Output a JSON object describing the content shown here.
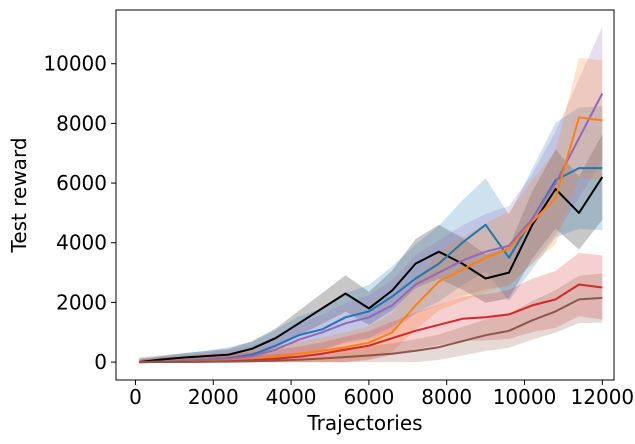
{
  "chart_data": {
    "type": "line",
    "title": "",
    "xlabel": "Trajectories",
    "ylabel": "Test reward",
    "xlim": [
      -500,
      12300
    ],
    "ylim": [
      -600,
      11800
    ],
    "xticks": [
      0,
      2000,
      4000,
      6000,
      8000,
      10000,
      12000
    ],
    "yticks": [
      0,
      2000,
      4000,
      6000,
      8000,
      10000
    ],
    "x": [
      100,
      600,
      1200,
      1800,
      2400,
      3000,
      3600,
      4200,
      4800,
      5400,
      6000,
      6600,
      7200,
      7800,
      8400,
      9000,
      9600,
      10200,
      10800,
      11400,
      12000
    ],
    "series": [
      {
        "name": "black",
        "color": "#000000",
        "band": 500,
        "values": [
          0,
          80,
          150,
          200,
          250,
          450,
          800,
          1300,
          1800,
          2300,
          1800,
          2400,
          3300,
          3700,
          3300,
          2800,
          3000,
          4600,
          5800,
          5000,
          6200
        ]
      },
      {
        "name": "blue",
        "color": "#1f77b4",
        "band": 1100,
        "values": [
          0,
          10,
          30,
          70,
          130,
          250,
          550,
          900,
          1100,
          1500,
          1700,
          2200,
          2800,
          3300,
          4000,
          4600,
          3500,
          4800,
          6100,
          6500,
          6500
        ]
      },
      {
        "name": "purple",
        "color": "#9467bd",
        "band": 900,
        "values": [
          0,
          10,
          25,
          60,
          110,
          200,
          420,
          750,
          1000,
          1300,
          1500,
          1900,
          2600,
          3000,
          3400,
          3700,
          3900,
          4800,
          6000,
          7500,
          9000
        ]
      },
      {
        "name": "orange",
        "color": "#ff7f0e",
        "band": 800,
        "values": [
          0,
          5,
          10,
          25,
          50,
          100,
          180,
          280,
          380,
          500,
          650,
          1000,
          1900,
          2700,
          3100,
          3500,
          3800,
          4700,
          5500,
          8200,
          8100
        ]
      },
      {
        "name": "red",
        "color": "#d62728",
        "band": 700,
        "values": [
          0,
          3,
          8,
          15,
          30,
          60,
          110,
          180,
          280,
          420,
          550,
          800,
          1050,
          1250,
          1450,
          1500,
          1600,
          1900,
          2100,
          2600,
          2500
        ]
      },
      {
        "name": "brown",
        "color": "#8c564b",
        "band": 500,
        "values": [
          0,
          2,
          5,
          10,
          18,
          30,
          50,
          80,
          120,
          170,
          220,
          280,
          380,
          500,
          700,
          900,
          1050,
          1400,
          1700,
          2100,
          2150
        ]
      }
    ]
  }
}
